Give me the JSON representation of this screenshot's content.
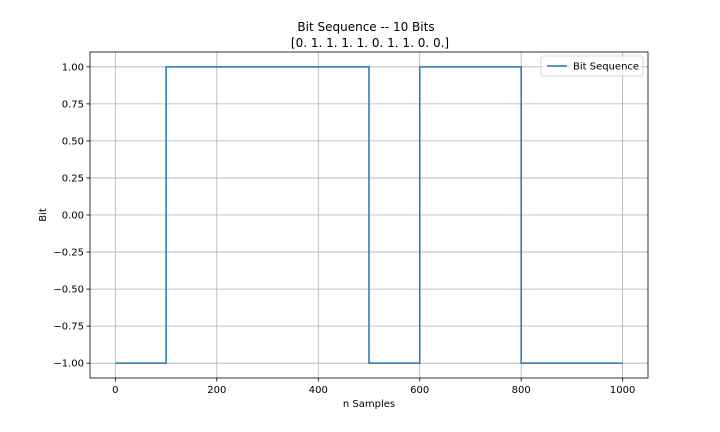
{
  "chart_data": {
    "type": "line",
    "step": "post",
    "title": "Bit Sequence -- 10 Bits",
    "subtitle": "[0. 1. 1. 1. 1. 0. 1. 1. 0. 0.]",
    "xlabel": "n Samples",
    "ylabel": "Bit",
    "xlim": [
      -50,
      1050
    ],
    "ylim": [
      -1.1,
      1.1
    ],
    "x_ticks": [
      0,
      200,
      400,
      600,
      800,
      1000
    ],
    "x_tick_labels": [
      "0",
      "200",
      "400",
      "600",
      "800",
      "1000"
    ],
    "y_ticks": [
      1.0,
      0.75,
      0.5,
      0.25,
      0.0,
      -0.25,
      -0.5,
      -0.75,
      -1.0
    ],
    "y_tick_labels": [
      "1.00",
      "0.75",
      "0.50",
      "0.25",
      "0.00",
      "−0.25",
      "−0.50",
      "−0.75",
      "−1.00"
    ],
    "grid": true,
    "legend_position": "top-right",
    "series": [
      {
        "name": "Bit Sequence",
        "color": "#1f77b4",
        "x": [
          0,
          100,
          100,
          500,
          500,
          600,
          600,
          800,
          800,
          1000
        ],
        "y": [
          -1,
          -1,
          1,
          1,
          -1,
          -1,
          1,
          1,
          -1,
          -1
        ]
      }
    ]
  }
}
